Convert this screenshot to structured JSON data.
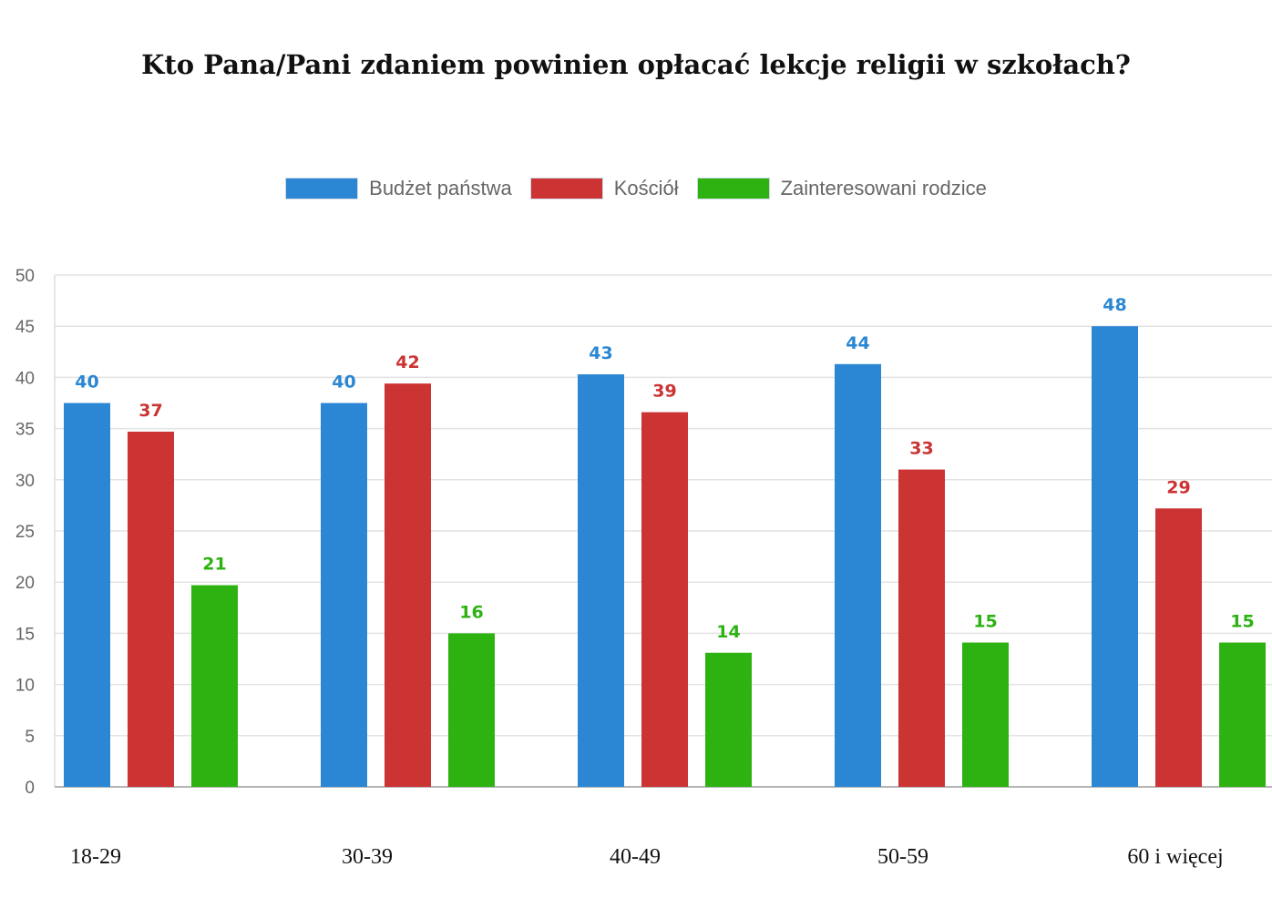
{
  "chart_data": {
    "type": "bar",
    "title": "Kto Pana/Pani zdaniem powinien opłacać lekcje religii w szkołach?",
    "categories": [
      "18-29",
      "30-39",
      "40-49",
      "50-59",
      "60 i więcej"
    ],
    "series": [
      {
        "name": "Budżet państwa",
        "color": "#2b87d3",
        "values": [
          37.5,
          37.5,
          40.3,
          41.3,
          45.0
        ],
        "labels": [
          "40",
          "40",
          "43",
          "44",
          "48"
        ]
      },
      {
        "name": "Kościół",
        "color": "#cc3333",
        "values": [
          34.7,
          39.4,
          36.6,
          31.0,
          27.2
        ],
        "labels": [
          "37",
          "42",
          "39",
          "33",
          "29"
        ]
      },
      {
        "name": "Zainteresowani rodzice",
        "color": "#2db212",
        "values": [
          19.7,
          15.0,
          13.1,
          14.1,
          14.1
        ],
        "labels": [
          "21",
          "16",
          "14",
          "15",
          "15"
        ]
      }
    ],
    "ylim": [
      0,
      50
    ],
    "yticks": [
      0,
      5,
      10,
      15,
      20,
      25,
      30,
      35,
      40,
      45,
      50
    ],
    "grid": true,
    "legend_position": "top-center"
  }
}
